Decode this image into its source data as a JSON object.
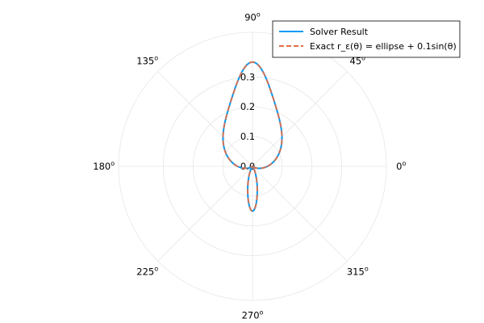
{
  "chart_data": {
    "type": "line",
    "projection": "polar",
    "title": "",
    "grid": true,
    "rlim": [
      0,
      0.45
    ],
    "radial_ticks": [
      0.0,
      0.1,
      0.2,
      0.3
    ],
    "radial_tick_labels": [
      "0.0",
      "0.1",
      "0.2",
      "0.3"
    ],
    "angular_ticks_deg": [
      0,
      45,
      90,
      135,
      180,
      225,
      270,
      315
    ],
    "angular_tick_labels": [
      "0",
      "45",
      "90",
      "135",
      "180",
      "225",
      "270",
      "315"
    ],
    "angular_tick_suffix": "o",
    "legend": {
      "position": "top-right"
    },
    "series": [
      {
        "name": "Solver Result",
        "color": "#009AFA",
        "style": "solid",
        "formula": "r = a*b/sqrt((b*cos(theta))^2 + (a*sin(theta))^2) + 0.1*sin(theta)",
        "a": 0.05,
        "b": 0.25,
        "epsilon": 0.1
      },
      {
        "name": "Exact r_ε(θ) = ellipse + 0.1sin(θ)",
        "color": "#E26F46",
        "style": "dashed",
        "formula": "r = a*b/sqrt((b*cos(theta))^2 + (a*sin(theta))^2) + 0.1*sin(theta)",
        "a": 0.05,
        "b": 0.25,
        "epsilon": 0.1
      }
    ]
  }
}
